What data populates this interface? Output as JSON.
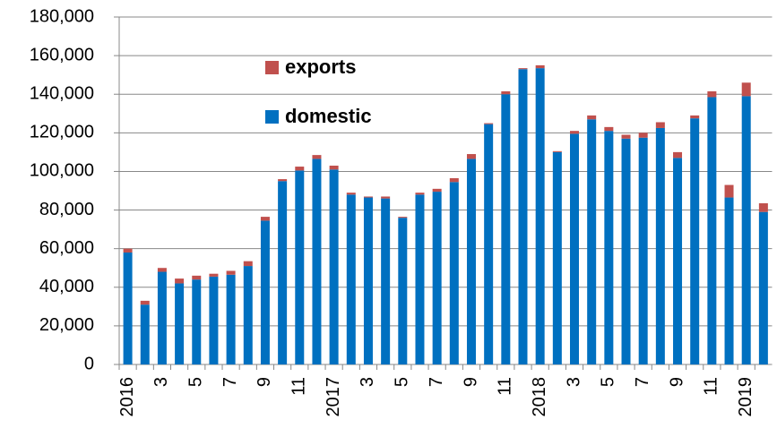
{
  "chart_data": {
    "type": "stacked-bar",
    "categories": [
      "2016",
      null,
      "3",
      null,
      "5",
      null,
      "7",
      null,
      "9",
      null,
      "11",
      null,
      "2017",
      null,
      "3",
      null,
      "5",
      null,
      "7",
      null,
      "9",
      null,
      "11",
      null,
      "2018",
      null,
      "3",
      null,
      "5",
      null,
      "7",
      null,
      "9",
      null,
      "11",
      null,
      "2019",
      null
    ],
    "series": [
      {
        "name": "domestic",
        "color": "#0070c0",
        "values": [
          58000,
          31000,
          48000,
          42000,
          44000,
          45500,
          46500,
          51000,
          74500,
          95000,
          100500,
          106500,
          101000,
          88000,
          86500,
          86000,
          76000,
          88000,
          89500,
          94500,
          106500,
          124500,
          140000,
          153000,
          153500,
          110000,
          119500,
          127000,
          121000,
          117000,
          117500,
          122500,
          107000,
          127500,
          138500,
          86500,
          139000,
          79000
        ]
      },
      {
        "name": "exports",
        "color": "#c0504d",
        "values": [
          2000,
          2000,
          2000,
          2500,
          2000,
          1500,
          2000,
          2500,
          2000,
          1000,
          2000,
          2000,
          2000,
          1000,
          500,
          1000,
          500,
          1000,
          1500,
          2000,
          2500,
          500,
          1500,
          500,
          1500,
          500,
          1500,
          2000,
          2000,
          2000,
          2500,
          3000,
          3000,
          1500,
          3000,
          6500,
          7000,
          4500
        ]
      }
    ],
    "ylim": [
      0,
      180000
    ],
    "yticks": [
      0,
      {
        "value": 20000,
        "label": "20,000"
      },
      {
        "value": 40000,
        "label": "40,000"
      },
      {
        "value": 60000,
        "label": "60,000"
      },
      {
        "value": 80000,
        "label": "80,000"
      },
      {
        "value": 100000,
        "label": "100,000"
      },
      {
        "value": 120000,
        "label": "120,000"
      },
      {
        "value": 140000,
        "label": "140,000"
      },
      {
        "value": 160000,
        "label": "160,000"
      },
      {
        "value": 180000,
        "label": "180,000"
      }
    ],
    "grid": true
  }
}
